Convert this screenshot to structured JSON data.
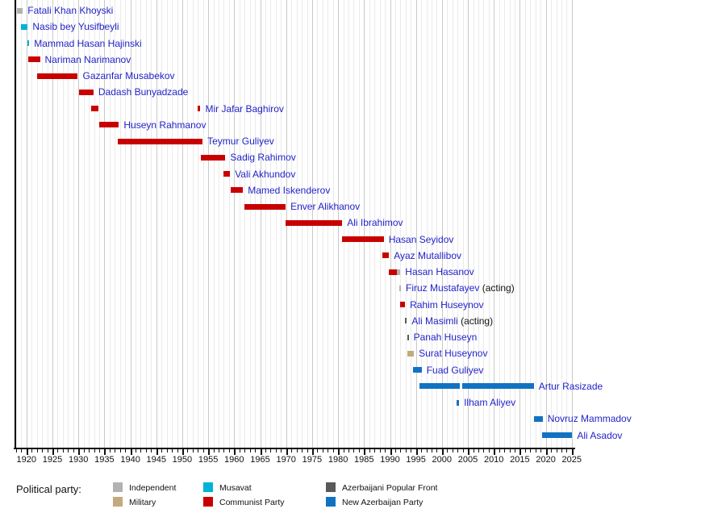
{
  "chart_data": {
    "type": "timeline",
    "description": "Timeline of heads of government of Azerbaijan colored by political party",
    "x_axis": {
      "min": 1917.7,
      "max": 2025.5,
      "minor_interval": 1,
      "major_interval": 5,
      "tick_labels": [
        "1920",
        "1925",
        "1930",
        "1935",
        "1940",
        "1945",
        "1950",
        "1955",
        "1960",
        "1965",
        "1970",
        "1975",
        "1980",
        "1985",
        "1990",
        "1995",
        "2000",
        "2005",
        "2010",
        "2015",
        "2020",
        "2025"
      ]
    },
    "party_colors": {
      "independent": "#b2b2b2",
      "military": "#c2aa7e",
      "musavat": "#00b2d9",
      "communist": "#c80000",
      "popular_front": "#595959",
      "nap": "#1272c2"
    },
    "label_color": "#2323c8",
    "people": [
      {
        "name": "Fatali Khan Khoyski",
        "terms": [
          {
            "start": 1918.1,
            "end": 1919.3,
            "party": "independent"
          }
        ]
      },
      {
        "name": "Nasib bey Yusifbeyli",
        "terms": [
          {
            "start": 1919.0,
            "end": 1920.25,
            "party": "musavat"
          }
        ]
      },
      {
        "name": "Mammad Hasan Hajinski",
        "terms": [
          {
            "start": 1920.2,
            "end": 1920.55,
            "party": "musavat"
          }
        ]
      },
      {
        "name": "Nariman Narimanov",
        "terms": [
          {
            "start": 1920.35,
            "end": 1922.6,
            "party": "communist"
          }
        ]
      },
      {
        "name": "Gazanfar Musabekov",
        "terms": [
          {
            "start": 1922.1,
            "end": 1929.9,
            "party": "communist"
          }
        ]
      },
      {
        "name": "Dadash Bunyadzade",
        "terms": [
          {
            "start": 1930.1,
            "end": 1932.9,
            "party": "communist"
          }
        ]
      },
      {
        "name": "Mir Jafar Baghirov",
        "terms": [
          {
            "start": 1932.4,
            "end": 1933.9,
            "party": "communist"
          },
          {
            "start": 1953.0,
            "end": 1953.5,
            "party": "communist"
          }
        ]
      },
      {
        "name": "Huseyn Rahmanov",
        "terms": [
          {
            "start": 1934.0,
            "end": 1937.8,
            "party": "communist"
          }
        ]
      },
      {
        "name": "Teymur Guliyev",
        "terms": [
          {
            "start": 1937.6,
            "end": 1953.9,
            "party": "communist"
          }
        ]
      },
      {
        "name": "Sadig Rahimov",
        "terms": [
          {
            "start": 1953.6,
            "end": 1958.3,
            "party": "communist"
          }
        ]
      },
      {
        "name": "Vali Akhundov",
        "terms": [
          {
            "start": 1958.0,
            "end": 1959.2,
            "party": "communist"
          }
        ]
      },
      {
        "name": "Mamed Iskenderov",
        "terms": [
          {
            "start": 1959.3,
            "end": 1961.7,
            "party": "communist"
          }
        ]
      },
      {
        "name": "Enver Alikhanov",
        "terms": [
          {
            "start": 1961.9,
            "end": 1969.9,
            "party": "communist"
          }
        ]
      },
      {
        "name": "Ali Ibrahimov",
        "terms": [
          {
            "start": 1969.9,
            "end": 1980.8,
            "party": "communist"
          }
        ]
      },
      {
        "name": "Hasan Seyidov",
        "terms": [
          {
            "start": 1980.8,
            "end": 1988.8,
            "party": "communist"
          }
        ]
      },
      {
        "name": "Ayaz Mutallibov",
        "terms": [
          {
            "start": 1988.5,
            "end": 1989.8,
            "party": "communist"
          }
        ]
      },
      {
        "name": "Hasan Hasanov",
        "terms": [
          {
            "start": 1989.8,
            "end": 1991.3,
            "party": "communist"
          },
          {
            "start": 1991.3,
            "end": 1992.0,
            "party": "independent"
          }
        ]
      },
      {
        "name": "Firuz Mustafayev",
        "suffix": " (acting)",
        "terms": [
          {
            "start": 1991.8,
            "end": 1992.1,
            "party": "independent"
          }
        ]
      },
      {
        "name": "Rahim Huseynov",
        "terms": [
          {
            "start": 1992.0,
            "end": 1992.9,
            "party": "communist"
          }
        ]
      },
      {
        "name": "Ali Masimli",
        "suffix": " (acting)",
        "terms": [
          {
            "start": 1992.95,
            "end": 1993.25,
            "party": "popular_front"
          }
        ]
      },
      {
        "name": "Panah Huseyn",
        "terms": [
          {
            "start": 1993.3,
            "end": 1993.6,
            "party": "popular_front"
          }
        ]
      },
      {
        "name": "Surat Huseynov",
        "terms": [
          {
            "start": 1993.3,
            "end": 1994.6,
            "party": "military"
          }
        ]
      },
      {
        "name": "Fuad Guliyev",
        "terms": [
          {
            "start": 1994.5,
            "end": 1996.1,
            "party": "nap"
          }
        ]
      },
      {
        "name": "Artur Rasizade",
        "terms": [
          {
            "start": 1995.7,
            "end": 2003.4,
            "party": "nap"
          },
          {
            "start": 2003.9,
            "end": 2017.7,
            "party": "nap"
          }
        ]
      },
      {
        "name": "Ilham Aliyev",
        "terms": [
          {
            "start": 2002.8,
            "end": 2003.3,
            "party": "nap"
          }
        ]
      },
      {
        "name": "Novruz Mammadov",
        "terms": [
          {
            "start": 2017.7,
            "end": 2019.4,
            "party": "nap"
          }
        ]
      },
      {
        "name": "Ali Asadov",
        "terms": [
          {
            "start": 2019.3,
            "end": 2025.1,
            "party": "nap"
          }
        ]
      }
    ],
    "legend": {
      "title": "Political party:",
      "columns": [
        [
          {
            "label": "Independent",
            "party": "independent"
          },
          {
            "label": "Military",
            "party": "military"
          }
        ],
        [
          {
            "label": "Musavat",
            "party": "musavat"
          },
          {
            "label": "Communist Party",
            "party": "communist"
          }
        ],
        [
          {
            "label": "Azerbaijani Popular Front",
            "party": "popular_front"
          },
          {
            "label": "New Azerbaijan Party",
            "party": "nap"
          }
        ]
      ]
    }
  }
}
